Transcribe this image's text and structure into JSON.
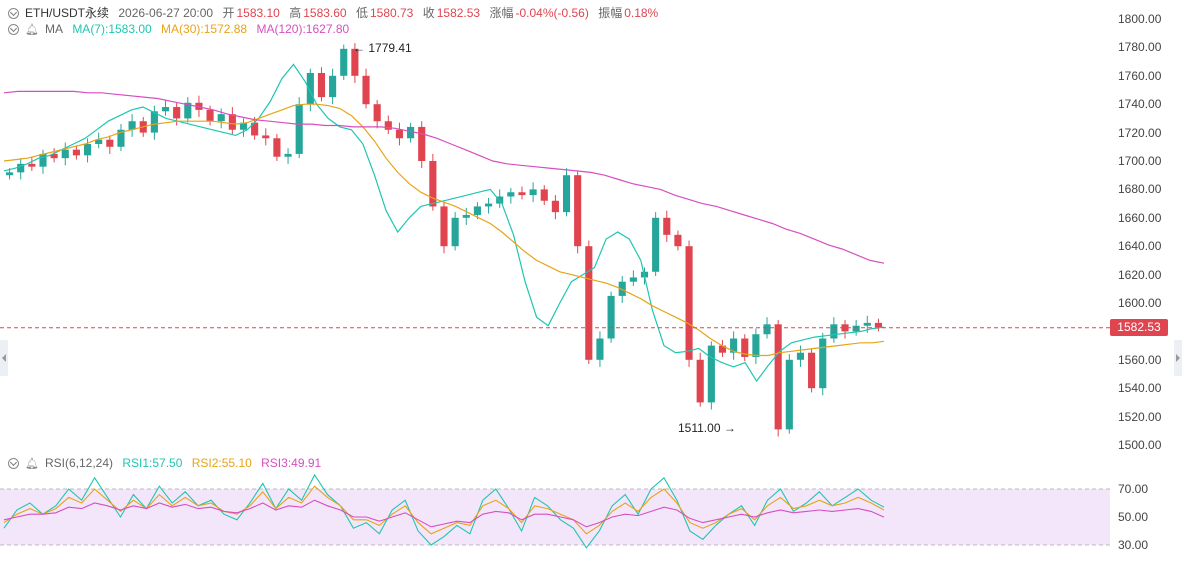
{
  "header": {
    "symbol": "ETH/USDT永续",
    "datetime": "2026-06-27 20:00",
    "open_label": "开",
    "open": "1583.10",
    "high_label": "高",
    "high": "1583.60",
    "low_label": "低",
    "low": "1580.73",
    "close_label": "收",
    "close": "1582.53",
    "change_label": "涨幅",
    "change": "-0.04%(-0.56)",
    "amp_label": "振幅",
    "amp": "0.18%"
  },
  "ma_legend": {
    "title": "MA",
    "ma7": "MA(7):1583.00",
    "ma30": "MA(30):1572.88",
    "ma120": "MA(120):1627.80"
  },
  "rsi_legend": {
    "title": "RSI(6,12,24)",
    "rsi1": "RSI1:57.50",
    "rsi2": "RSI2:55.10",
    "rsi3": "RSI3:49.91"
  },
  "price_axis": [
    "1800.00",
    "1780.00",
    "1760.00",
    "1740.00",
    "1720.00",
    "1700.00",
    "1680.00",
    "1660.00",
    "1640.00",
    "1620.00",
    "1600.00",
    "1580.00",
    "1560.00",
    "1540.00",
    "1520.00",
    "1500.00"
  ],
  "rsi_axis": [
    "70.00",
    "50.00",
    "30.00"
  ],
  "current_price": "1582.53",
  "annotations": {
    "high_mark": "1779.41",
    "low_mark": "1511.00"
  },
  "colors": {
    "up": "#26a69a",
    "down": "#e0444f",
    "ma7": "#1fc6b0",
    "ma30": "#e8a317",
    "ma120": "#d64fc0",
    "rsi_band": "#f3e6fb"
  },
  "chart_data": [
    {
      "type": "candlestick",
      "title": "ETH/USDT永续",
      "ylim": [
        1500,
        1800
      ],
      "hline": 1582.53,
      "series": [
        {
          "name": "MA(7)",
          "values": [
            1693,
            1695,
            1698,
            1702,
            1704,
            1708,
            1712,
            1716,
            1722,
            1728,
            1732,
            1736,
            1738,
            1734,
            1730,
            1728,
            1726,
            1724,
            1722,
            1720,
            1718,
            1722,
            1730,
            1742,
            1758,
            1768,
            1756,
            1740,
            1730,
            1724,
            1722,
            1712,
            1690,
            1665,
            1650,
            1660,
            1668,
            1670,
            1672,
            1674,
            1676,
            1678,
            1680,
            1670,
            1648,
            1615,
            1590,
            1584,
            1600,
            1615,
            1620,
            1625,
            1645,
            1650,
            1645,
            1630,
            1595,
            1570,
            1565,
            1566,
            1568,
            1562,
            1558,
            1555,
            1558,
            1545,
            1556,
            1566,
            1572,
            1574,
            1576,
            1577,
            1578,
            1579,
            1580,
            1582,
            1583
          ]
        },
        {
          "name": "MA(30)",
          "values": [
            1700,
            1701,
            1702,
            1704,
            1706,
            1708,
            1710,
            1712,
            1715,
            1717,
            1720,
            1722,
            1724,
            1726,
            1727,
            1728,
            1728,
            1728,
            1728,
            1727,
            1726,
            1727,
            1730,
            1733,
            1736,
            1739,
            1740,
            1740,
            1739,
            1737,
            1732,
            1724,
            1714,
            1702,
            1692,
            1684,
            1678,
            1674,
            1671,
            1668,
            1664,
            1660,
            1656,
            1650,
            1643,
            1636,
            1630,
            1626,
            1622,
            1620,
            1618,
            1616,
            1614,
            1611,
            1607,
            1603,
            1598,
            1594,
            1590,
            1586,
            1581,
            1575,
            1570,
            1566,
            1564,
            1563,
            1563,
            1565,
            1566,
            1567,
            1568,
            1569,
            1570,
            1571,
            1572,
            1572,
            1573
          ]
        },
        {
          "name": "MA(120)",
          "values": [
            1748,
            1749,
            1749,
            1749,
            1749,
            1749,
            1748,
            1748,
            1747,
            1746,
            1745,
            1744,
            1742,
            1740,
            1738,
            1736,
            1733,
            1731,
            1729,
            1728,
            1727,
            1726,
            1726,
            1725,
            1725,
            1724,
            1724,
            1724,
            1723,
            1721,
            1719,
            1716,
            1712,
            1708,
            1704,
            1700,
            1698,
            1697,
            1696,
            1695,
            1694,
            1693,
            1692,
            1690,
            1687,
            1684,
            1682,
            1680,
            1676,
            1673,
            1670,
            1668,
            1665,
            1662,
            1659,
            1656,
            1652,
            1649,
            1645,
            1641,
            1638,
            1634,
            1630,
            1628
          ]
        }
      ],
      "close": [
        1692,
        1698,
        1696,
        1705,
        1702,
        1708,
        1704,
        1712,
        1715,
        1710,
        1722,
        1728,
        1720,
        1735,
        1738,
        1730,
        1741,
        1736,
        1728,
        1733,
        1722,
        1727,
        1718,
        1716,
        1703,
        1705,
        1740,
        1762,
        1745,
        1760,
        1779,
        1760,
        1740,
        1728,
        1722,
        1716,
        1724,
        1700,
        1668,
        1640,
        1660,
        1662,
        1668,
        1670,
        1675,
        1678,
        1676,
        1680,
        1672,
        1664,
        1690,
        1640,
        1560,
        1575,
        1605,
        1615,
        1618,
        1622,
        1660,
        1648,
        1640,
        1560,
        1530,
        1570,
        1565,
        1575,
        1562,
        1578,
        1585,
        1511,
        1560,
        1565,
        1540,
        1575,
        1585,
        1580,
        1584,
        1586,
        1583
      ]
    },
    {
      "type": "line",
      "title": "RSI(6,12,24)",
      "ylim": [
        20,
        80
      ],
      "series": [
        {
          "name": "RSI1",
          "values": [
            42,
            55,
            60,
            52,
            58,
            70,
            62,
            78,
            64,
            50,
            66,
            56,
            72,
            60,
            68,
            58,
            62,
            52,
            48,
            60,
            74,
            56,
            70,
            62,
            80,
            66,
            58,
            42,
            46,
            38,
            55,
            62,
            40,
            30,
            36,
            44,
            38,
            62,
            70,
            56,
            40,
            64,
            58,
            48,
            42,
            28,
            40,
            58,
            66,
            52,
            70,
            78,
            62,
            40,
            34,
            44,
            52,
            58,
            44,
            62,
            70,
            54,
            60,
            68,
            58,
            64,
            70,
            62,
            57
          ]
        },
        {
          "name": "RSI2",
          "values": [
            46,
            52,
            56,
            52,
            56,
            64,
            60,
            70,
            62,
            54,
            62,
            56,
            66,
            58,
            64,
            58,
            60,
            54,
            52,
            58,
            68,
            56,
            64,
            60,
            72,
            64,
            58,
            48,
            48,
            44,
            52,
            58,
            46,
            38,
            42,
            46,
            44,
            58,
            62,
            56,
            46,
            58,
            56,
            52,
            48,
            38,
            44,
            54,
            60,
            54,
            64,
            70,
            60,
            46,
            42,
            46,
            52,
            56,
            48,
            58,
            64,
            56,
            58,
            62,
            58,
            60,
            64,
            60,
            55
          ]
        },
        {
          "name": "RSI3",
          "values": [
            48,
            50,
            52,
            52,
            53,
            57,
            56,
            60,
            58,
            55,
            58,
            56,
            60,
            57,
            59,
            56,
            57,
            54,
            53,
            56,
            60,
            55,
            58,
            57,
            62,
            58,
            55,
            50,
            50,
            47,
            50,
            53,
            48,
            43,
            45,
            47,
            46,
            52,
            54,
            53,
            48,
            52,
            52,
            50,
            48,
            43,
            46,
            50,
            52,
            51,
            54,
            57,
            55,
            49,
            46,
            48,
            50,
            52,
            50,
            53,
            55,
            53,
            54,
            55,
            54,
            55,
            56,
            54,
            49.91
          ]
        }
      ]
    }
  ]
}
